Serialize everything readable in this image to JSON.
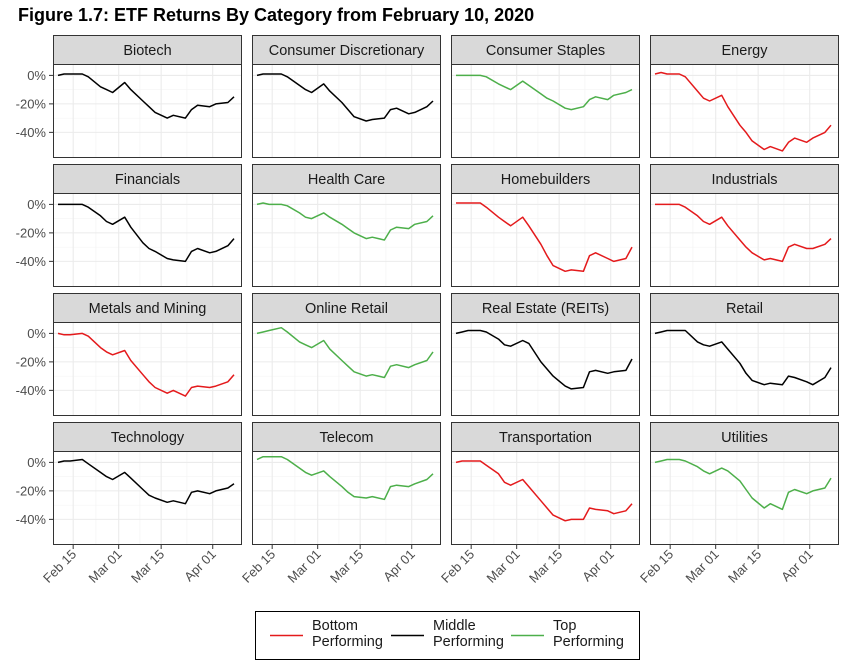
{
  "title": "Figure 1.7: ETF Returns By Category from February 10, 2020",
  "colors": {
    "Bottom Performing": "#e41a1c",
    "Middle Performing": "#000000",
    "Top Performing": "#4daf4a",
    "strip_bg": "#d9d9d9",
    "grid": "#ebebeb"
  },
  "chart_data": {
    "type": "line",
    "facet_layout": "4x4 grid, shared axes",
    "x_range": [
      "2020-02-10",
      "2020-04-09"
    ],
    "x_ticks": [
      {
        "label": "Feb 15",
        "date": "2020-02-15"
      },
      {
        "label": "Mar 01",
        "date": "2020-03-01"
      },
      {
        "label": "Mar 15",
        "date": "2020-03-15"
      },
      {
        "label": "Apr 01",
        "date": "2020-04-01"
      }
    ],
    "ylim": [
      -0.58,
      0.08
    ],
    "y_ticks": [
      {
        "label": "0%",
        "value": 0
      },
      {
        "label": "-20%",
        "value": -0.2
      },
      {
        "label": "-40%",
        "value": -0.4
      }
    ],
    "grid": true,
    "legend": {
      "position": "bottom",
      "entries": [
        {
          "key": "Bottom Performing",
          "lines": [
            "Bottom",
            "Performing"
          ]
        },
        {
          "key": "Middle Performing",
          "lines": [
            "Middle",
            "Performing"
          ]
        },
        {
          "key": "Top Performing",
          "lines": [
            "Top",
            "Performing"
          ]
        }
      ]
    },
    "x": [
      "2020-02-10",
      "2020-02-12",
      "2020-02-14",
      "2020-02-18",
      "2020-02-20",
      "2020-02-24",
      "2020-02-26",
      "2020-02-28",
      "2020-03-03",
      "2020-03-05",
      "2020-03-09",
      "2020-03-11",
      "2020-03-13",
      "2020-03-17",
      "2020-03-19",
      "2020-03-23",
      "2020-03-25",
      "2020-03-27",
      "2020-03-31",
      "2020-04-02",
      "2020-04-06",
      "2020-04-08"
    ],
    "series": [
      {
        "name": "Biotech",
        "group": "Middle Performing",
        "values": [
          0.0,
          0.01,
          0.01,
          0.01,
          -0.01,
          -0.08,
          -0.1,
          -0.12,
          -0.05,
          -0.1,
          -0.18,
          -0.22,
          -0.26,
          -0.3,
          -0.28,
          -0.3,
          -0.24,
          -0.21,
          -0.22,
          -0.2,
          -0.19,
          -0.15
        ]
      },
      {
        "name": "Consumer Discretionary",
        "group": "Middle Performing",
        "values": [
          0.0,
          0.01,
          0.01,
          0.01,
          -0.01,
          -0.07,
          -0.1,
          -0.12,
          -0.06,
          -0.11,
          -0.19,
          -0.24,
          -0.29,
          -0.32,
          -0.31,
          -0.3,
          -0.24,
          -0.23,
          -0.27,
          -0.26,
          -0.22,
          -0.18
        ]
      },
      {
        "name": "Consumer Staples",
        "group": "Top Performing",
        "values": [
          0.0,
          0.0,
          0.0,
          0.0,
          -0.01,
          -0.06,
          -0.08,
          -0.1,
          -0.04,
          -0.07,
          -0.13,
          -0.16,
          -0.18,
          -0.23,
          -0.24,
          -0.22,
          -0.17,
          -0.15,
          -0.17,
          -0.14,
          -0.12,
          -0.1
        ]
      },
      {
        "name": "Energy",
        "group": "Bottom Performing",
        "values": [
          0.01,
          0.02,
          0.01,
          0.01,
          -0.01,
          -0.11,
          -0.16,
          -0.18,
          -0.14,
          -0.22,
          -0.35,
          -0.4,
          -0.46,
          -0.52,
          -0.5,
          -0.53,
          -0.47,
          -0.44,
          -0.47,
          -0.44,
          -0.4,
          -0.35
        ]
      },
      {
        "name": "Financials",
        "group": "Middle Performing",
        "values": [
          0.0,
          0.0,
          0.0,
          0.0,
          -0.02,
          -0.08,
          -0.12,
          -0.14,
          -0.09,
          -0.16,
          -0.27,
          -0.31,
          -0.33,
          -0.38,
          -0.39,
          -0.4,
          -0.33,
          -0.31,
          -0.34,
          -0.33,
          -0.29,
          -0.24
        ]
      },
      {
        "name": "Health Care",
        "group": "Top Performing",
        "values": [
          0.0,
          0.01,
          0.0,
          0.0,
          -0.01,
          -0.06,
          -0.09,
          -0.1,
          -0.06,
          -0.09,
          -0.14,
          -0.17,
          -0.2,
          -0.24,
          -0.23,
          -0.25,
          -0.18,
          -0.16,
          -0.17,
          -0.14,
          -0.12,
          -0.08
        ]
      },
      {
        "name": "Homebuilders",
        "group": "Bottom Performing",
        "values": [
          0.01,
          0.01,
          0.01,
          0.01,
          -0.02,
          -0.09,
          -0.12,
          -0.15,
          -0.09,
          -0.15,
          -0.28,
          -0.36,
          -0.43,
          -0.47,
          -0.46,
          -0.47,
          -0.36,
          -0.34,
          -0.38,
          -0.4,
          -0.38,
          -0.3
        ]
      },
      {
        "name": "Industrials",
        "group": "Bottom Performing",
        "values": [
          0.0,
          0.0,
          0.0,
          0.0,
          -0.02,
          -0.08,
          -0.12,
          -0.14,
          -0.09,
          -0.15,
          -0.25,
          -0.3,
          -0.34,
          -0.39,
          -0.38,
          -0.4,
          -0.3,
          -0.28,
          -0.31,
          -0.31,
          -0.28,
          -0.24
        ]
      },
      {
        "name": "Metals and Mining",
        "group": "Bottom Performing",
        "values": [
          0.0,
          -0.01,
          -0.01,
          0.0,
          -0.02,
          -0.1,
          -0.13,
          -0.15,
          -0.12,
          -0.19,
          -0.29,
          -0.34,
          -0.38,
          -0.42,
          -0.4,
          -0.44,
          -0.38,
          -0.37,
          -0.38,
          -0.37,
          -0.34,
          -0.29
        ]
      },
      {
        "name": "Online Retail",
        "group": "Top Performing",
        "values": [
          0.0,
          0.01,
          0.02,
          0.04,
          0.01,
          -0.06,
          -0.08,
          -0.1,
          -0.05,
          -0.11,
          -0.19,
          -0.23,
          -0.27,
          -0.3,
          -0.29,
          -0.31,
          -0.23,
          -0.22,
          -0.24,
          -0.22,
          -0.19,
          -0.13
        ]
      },
      {
        "name": "Real Estate (REITs)",
        "group": "Middle Performing",
        "values": [
          0.0,
          0.01,
          0.02,
          0.02,
          0.01,
          -0.04,
          -0.08,
          -0.09,
          -0.05,
          -0.07,
          -0.2,
          -0.25,
          -0.3,
          -0.37,
          -0.39,
          -0.38,
          -0.27,
          -0.26,
          -0.28,
          -0.27,
          -0.26,
          -0.18
        ]
      },
      {
        "name": "Retail",
        "group": "Middle Performing",
        "values": [
          0.0,
          0.01,
          0.02,
          0.02,
          0.02,
          -0.06,
          -0.08,
          -0.09,
          -0.06,
          -0.11,
          -0.21,
          -0.28,
          -0.33,
          -0.36,
          -0.35,
          -0.36,
          -0.3,
          -0.31,
          -0.34,
          -0.36,
          -0.31,
          -0.24
        ]
      },
      {
        "name": "Technology",
        "group": "Middle Performing",
        "values": [
          0.0,
          0.01,
          0.01,
          0.02,
          -0.01,
          -0.07,
          -0.1,
          -0.12,
          -0.07,
          -0.11,
          -0.19,
          -0.23,
          -0.25,
          -0.28,
          -0.27,
          -0.29,
          -0.21,
          -0.2,
          -0.22,
          -0.2,
          -0.18,
          -0.15
        ]
      },
      {
        "name": "Telecom",
        "group": "Top Performing",
        "values": [
          0.02,
          0.04,
          0.04,
          0.04,
          0.02,
          -0.04,
          -0.07,
          -0.09,
          -0.06,
          -0.1,
          -0.17,
          -0.21,
          -0.24,
          -0.25,
          -0.24,
          -0.26,
          -0.17,
          -0.16,
          -0.17,
          -0.15,
          -0.12,
          -0.08
        ]
      },
      {
        "name": "Transportation",
        "group": "Bottom Performing",
        "values": [
          0.0,
          0.01,
          0.01,
          0.01,
          -0.02,
          -0.08,
          -0.14,
          -0.16,
          -0.12,
          -0.17,
          -0.27,
          -0.32,
          -0.37,
          -0.41,
          -0.4,
          -0.4,
          -0.32,
          -0.33,
          -0.34,
          -0.36,
          -0.34,
          -0.29
        ]
      },
      {
        "name": "Utilities",
        "group": "Top Performing",
        "values": [
          0.0,
          0.01,
          0.02,
          0.02,
          0.01,
          -0.03,
          -0.06,
          -0.08,
          -0.04,
          -0.06,
          -0.13,
          -0.19,
          -0.25,
          -0.32,
          -0.29,
          -0.33,
          -0.21,
          -0.19,
          -0.22,
          -0.2,
          -0.18,
          -0.11
        ]
      }
    ]
  }
}
